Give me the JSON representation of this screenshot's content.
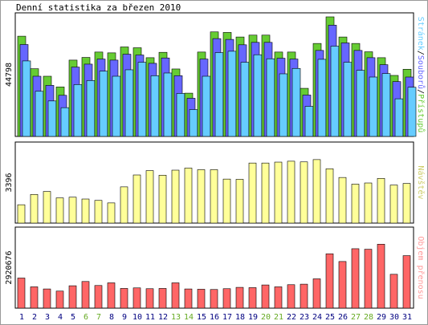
{
  "title": "Denní statistika za březen 2010",
  "colors": {
    "hits": "#66cc33",
    "files": "#6666ff",
    "pages": "#66ccff",
    "visits": "#ffff99",
    "kbytes": "#ff6666",
    "weekend_label": "#66aa22",
    "day_label": "#000080",
    "side_visits": "#cccc66",
    "side_kbytes": "#ff9999"
  },
  "legend_top": {
    "pages": "Stránek",
    "sep1": "/",
    "files": "Souborů",
    "sep2": "/",
    "hits": "Přístupů"
  },
  "legend_mid": "Návštěv",
  "legend_bot": "Objem přenosu",
  "chart_data": [
    {
      "type": "bar",
      "categories": [
        "1",
        "2",
        "3",
        "4",
        "5",
        "6",
        "7",
        "8",
        "9",
        "10",
        "11",
        "12",
        "13",
        "14",
        "15",
        "16",
        "17",
        "18",
        "19",
        "20",
        "21",
        "22",
        "23",
        "24",
        "25",
        "26",
        "27",
        "28",
        "29",
        "30",
        "31"
      ],
      "weekend_days": [
        "6",
        "7",
        "13",
        "14",
        "20",
        "21",
        "27",
        "28"
      ],
      "ymax_label": "44798",
      "ylim": [
        0,
        44798
      ],
      "series": [
        {
          "name": "Přístupů",
          "values": [
            37300,
            25200,
            22400,
            18400,
            28400,
            29400,
            31400,
            31100,
            33300,
            33000,
            29300,
            31300,
            25100,
            16100,
            31400,
            38900,
            38700,
            37000,
            37700,
            37700,
            31400,
            31400,
            17900,
            34600,
            44500,
            37000,
            34600,
            31500,
            29300,
            22700,
            25000
          ]
        },
        {
          "name": "Souborů",
          "values": [
            34200,
            22400,
            19000,
            15300,
            25800,
            26900,
            28800,
            28400,
            30600,
            30300,
            27200,
            29200,
            22600,
            14200,
            28800,
            36400,
            36100,
            34100,
            35000,
            35000,
            29100,
            28800,
            15400,
            32000,
            41400,
            34800,
            32000,
            29300,
            26700,
            20400,
            22100
          ]
        },
        {
          "name": "Stránek",
          "values": [
            28100,
            16800,
            13200,
            10700,
            19300,
            20800,
            24300,
            22400,
            24800,
            27600,
            22600,
            23600,
            16000,
            10000,
            22400,
            31200,
            31700,
            27600,
            30400,
            28900,
            23300,
            25300,
            11200,
            28700,
            33600,
            27600,
            24600,
            22100,
            23400,
            14000,
            18300
          ]
        }
      ]
    },
    {
      "type": "bar",
      "categories": [
        "1",
        "2",
        "3",
        "4",
        "5",
        "6",
        "7",
        "8",
        "9",
        "10",
        "11",
        "12",
        "13",
        "14",
        "15",
        "16",
        "17",
        "18",
        "19",
        "20",
        "21",
        "22",
        "23",
        "24",
        "25",
        "26",
        "27",
        "28",
        "29",
        "30",
        "31"
      ],
      "ymax_label": "3396",
      "ylim": [
        0,
        3396
      ],
      "series": [
        {
          "name": "Návštěv",
          "values": [
            800,
            1250,
            1380,
            1100,
            1130,
            1050,
            990,
            880,
            1580,
            2100,
            2290,
            2090,
            2310,
            2400,
            2330,
            2330,
            1920,
            1910,
            2620,
            2620,
            2660,
            2700,
            2670,
            2770,
            2370,
            1990,
            1700,
            1750,
            1950,
            1660,
            1730
          ]
        }
      ]
    },
    {
      "type": "bar",
      "categories": [
        "1",
        "2",
        "3",
        "4",
        "5",
        "6",
        "7",
        "8",
        "9",
        "10",
        "11",
        "12",
        "13",
        "14",
        "15",
        "16",
        "17",
        "18",
        "19",
        "20",
        "21",
        "22",
        "23",
        "24",
        "25",
        "26",
        "27",
        "28",
        "29",
        "30",
        "31"
      ],
      "ymax_label": "2920676",
      "ylim": [
        0,
        2920676
      ],
      "series": [
        {
          "name": "Objem přenosu",
          "values": [
            1130000,
            800000,
            720000,
            640000,
            840000,
            1000000,
            850000,
            950000,
            740000,
            760000,
            730000,
            740000,
            950000,
            720000,
            710000,
            700000,
            730000,
            780000,
            770000,
            870000,
            800000,
            880000,
            900000,
            1100000,
            2040000,
            1750000,
            2230000,
            2210000,
            2400000,
            1270000,
            1970000
          ]
        }
      ]
    }
  ]
}
